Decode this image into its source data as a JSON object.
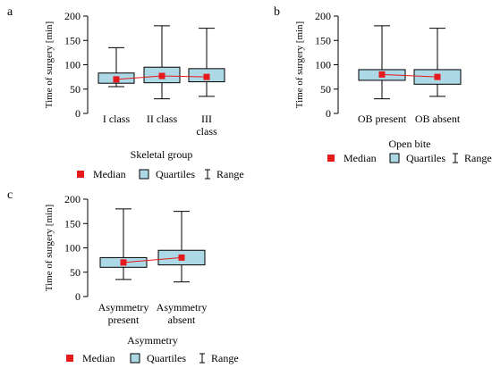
{
  "colors": {
    "box_fill": "#add8e6",
    "median": "#e41a1c",
    "line": "#000000"
  },
  "chart_data": [
    {
      "panel_label": "a",
      "type": "boxplot",
      "ylabel": "Time of surgery [min]",
      "xlabel": "Skeletal group",
      "ylim": [
        0,
        200
      ],
      "yticks": [
        0,
        50,
        100,
        150,
        200
      ],
      "categories": [
        [
          "I class"
        ],
        [
          "II class"
        ],
        [
          "III",
          "class"
        ]
      ],
      "boxes": [
        {
          "min": 55,
          "q1": 62,
          "median": 70,
          "q3": 83,
          "max": 135
        },
        {
          "min": 30,
          "q1": 63,
          "median": 77,
          "q3": 95,
          "max": 180
        },
        {
          "min": 35,
          "q1": 65,
          "median": 75,
          "q3": 92,
          "max": 175
        }
      ],
      "legend": {
        "median": "Median",
        "quartiles": "Quartiles",
        "range": "Range"
      }
    },
    {
      "panel_label": "b",
      "type": "boxplot",
      "ylabel": "Time of surgery [min]",
      "xlabel": "Open bite",
      "ylim": [
        0,
        200
      ],
      "yticks": [
        0,
        50,
        100,
        150,
        200
      ],
      "categories": [
        [
          "OB present"
        ],
        [
          "OB absent"
        ]
      ],
      "boxes": [
        {
          "min": 30,
          "q1": 68,
          "median": 80,
          "q3": 90,
          "max": 180
        },
        {
          "min": 35,
          "q1": 60,
          "median": 75,
          "q3": 90,
          "max": 175
        }
      ],
      "legend": {
        "median": "Median",
        "quartiles": "Quartiles",
        "range": "Range"
      }
    },
    {
      "panel_label": "c",
      "type": "boxplot",
      "ylabel": "Time of surgery [min]",
      "xlabel": "Asymmetry",
      "ylim": [
        0,
        200
      ],
      "yticks": [
        0,
        50,
        100,
        150,
        200
      ],
      "categories": [
        [
          "Asymmetry",
          "present"
        ],
        [
          "Asymmetry",
          "absent"
        ]
      ],
      "boxes": [
        {
          "min": 35,
          "q1": 60,
          "median": 70,
          "q3": 80,
          "max": 180
        },
        {
          "min": 30,
          "q1": 65,
          "median": 80,
          "q3": 95,
          "max": 175
        }
      ],
      "legend": {
        "median": "Median",
        "quartiles": "Quartiles",
        "range": "Range"
      }
    }
  ]
}
